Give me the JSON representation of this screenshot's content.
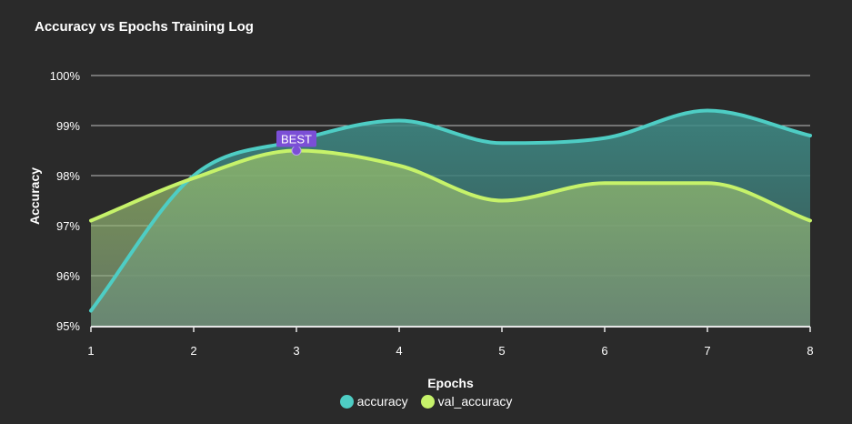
{
  "colors": {
    "background": "#2a2a2a",
    "accuracy": "#4ecdc4",
    "val_accuracy": "#c6f26a",
    "best_marker": "#7b4fd6",
    "grid": "#d9d9d9"
  },
  "chart_data": {
    "type": "area",
    "title": "Accuracy vs Epochs Training Log",
    "xlabel": "Epochs",
    "ylabel": "Accuracy",
    "x": [
      1,
      2,
      3,
      4,
      5,
      6,
      7,
      8
    ],
    "ylim": [
      95,
      100
    ],
    "y_ticks": [
      95,
      96,
      97,
      98,
      99,
      100
    ],
    "y_tick_labels": [
      "95%",
      "96%",
      "97%",
      "98%",
      "99%",
      "100%"
    ],
    "x_tick_labels": [
      "1",
      "2",
      "3",
      "4",
      "5",
      "6",
      "7",
      "8"
    ],
    "grid": true,
    "legend_position": "bottom-center",
    "series": [
      {
        "name": "accuracy",
        "values": [
          95.3,
          98.0,
          98.7,
          99.1,
          98.65,
          98.75,
          99.3,
          98.8
        ]
      },
      {
        "name": "val_accuracy",
        "values": [
          97.1,
          97.95,
          98.5,
          98.2,
          97.5,
          97.85,
          97.85,
          97.1
        ]
      }
    ],
    "annotations": [
      {
        "label": "BEST",
        "series": "val_accuracy",
        "x": 3,
        "y": 98.5
      }
    ]
  }
}
